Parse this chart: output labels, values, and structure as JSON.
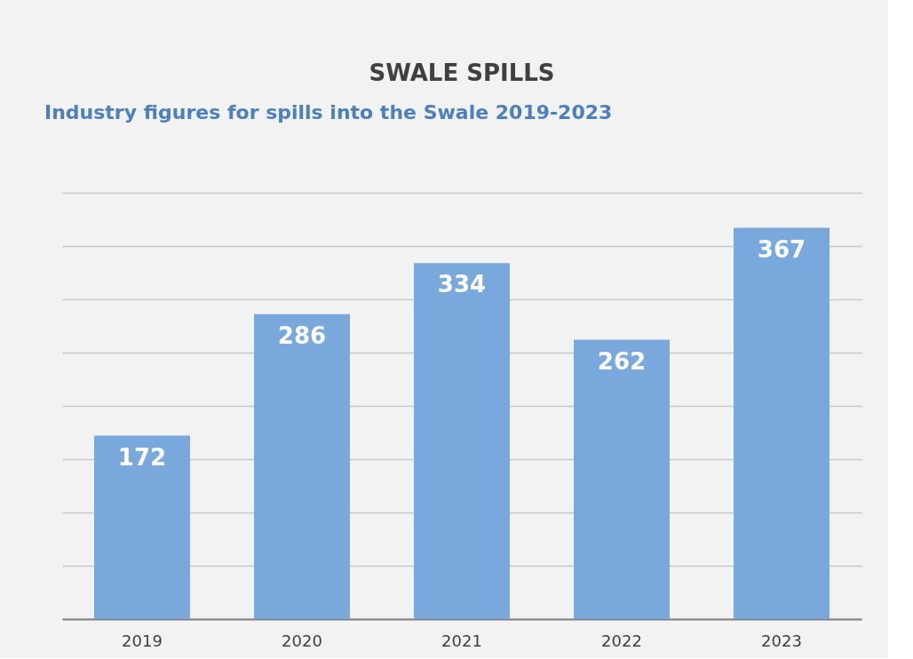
{
  "chart_data": {
    "type": "bar",
    "title": "SWALE SPILLS",
    "annotations": [
      "Industry figures for spills into the Swale 2019-2023"
    ],
    "categories": [
      "2019",
      "2020",
      "2021",
      "2022",
      "2023"
    ],
    "values": [
      172,
      286,
      334,
      262,
      367
    ],
    "color": "#78a8dc",
    "grid": "y",
    "data_labels": true,
    "tick_labels": "x"
  }
}
